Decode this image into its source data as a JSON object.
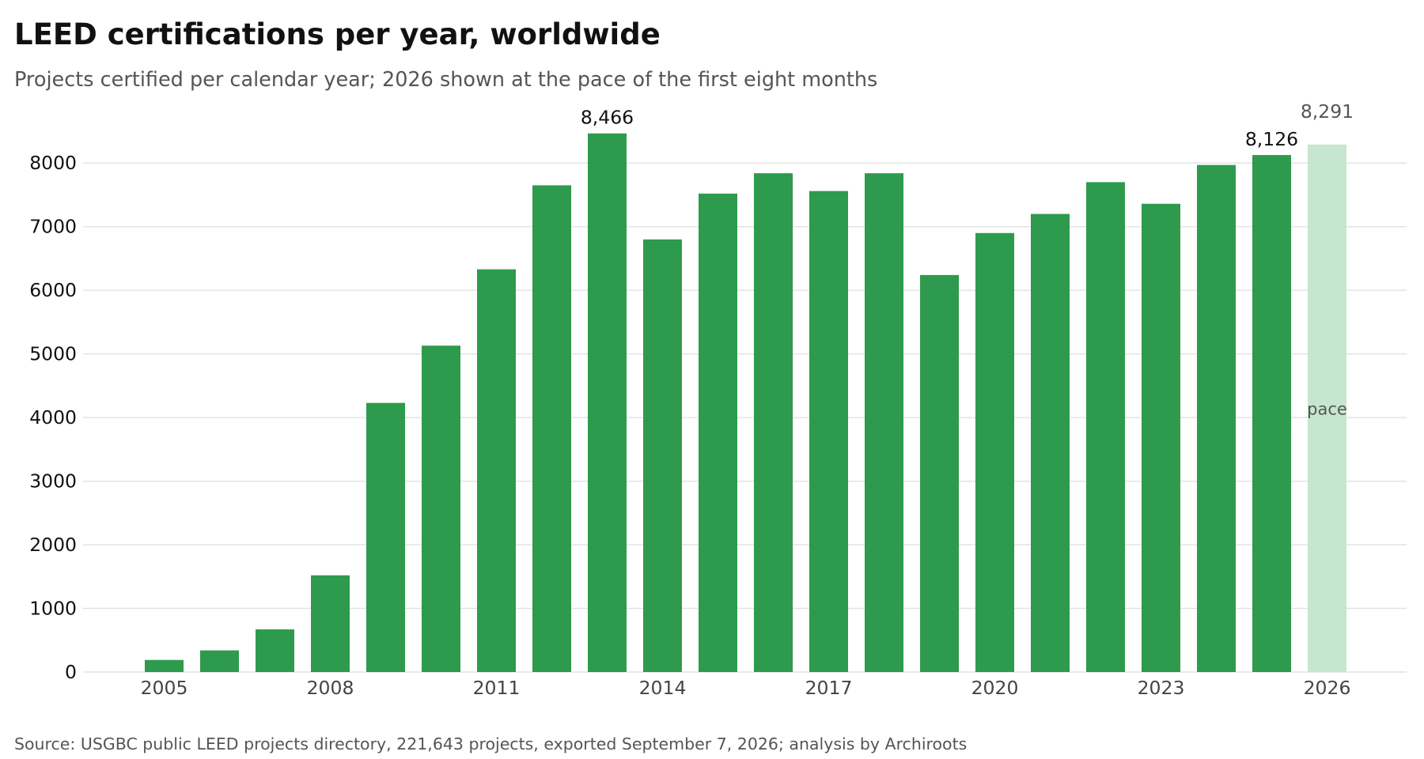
{
  "header": {
    "title": "LEED certifications per year, worldwide",
    "subtitle": "Projects certified per calendar year; 2026 shown at the pace of the first eight months"
  },
  "footer": {
    "source": "Source: USGBC public LEED projects directory, 221,643 projects, exported September 7, 2026; analysis by Archiroots"
  },
  "chart_data": {
    "type": "bar",
    "title": "LEED certifications per year, worldwide",
    "subtitle": "Projects certified per calendar year; 2026 shown at the pace of the first eight months",
    "xlabel": "",
    "ylabel": "",
    "categories": [
      2005,
      2006,
      2007,
      2008,
      2009,
      2010,
      2011,
      2012,
      2013,
      2014,
      2015,
      2016,
      2017,
      2018,
      2019,
      2020,
      2021,
      2022,
      2023,
      2024,
      2025,
      2026
    ],
    "values": [
      190,
      340,
      670,
      1520,
      4230,
      5130,
      6330,
      7650,
      8466,
      6800,
      7520,
      7840,
      7560,
      7840,
      6240,
      6900,
      7200,
      7700,
      7360,
      7970,
      8126,
      8291
    ],
    "x_ticks": [
      2005,
      2008,
      2011,
      2014,
      2017,
      2020,
      2023,
      2026
    ],
    "ylim": [
      0,
      8500
    ],
    "y_ticks": [
      0,
      1000,
      2000,
      3000,
      4000,
      5000,
      6000,
      7000,
      8000
    ],
    "grid": "horizontal",
    "legend": "none",
    "data_labels": [
      {
        "category": 2013,
        "text": "8,466"
      },
      {
        "category": 2025,
        "text": "8,126"
      },
      {
        "category": 2026,
        "text": "8,291"
      }
    ],
    "annotations": [
      {
        "category": 2026,
        "text": "pace"
      }
    ],
    "projected_category": 2026,
    "colors": {
      "bar": "#2e9a4d",
      "projected_bar": "#c7e6cf",
      "grid": "#e3e3e3",
      "axis_line": "#e3e3e3",
      "label": "#111111",
      "muted_label": "#555555",
      "x_tick": "#444444"
    }
  }
}
